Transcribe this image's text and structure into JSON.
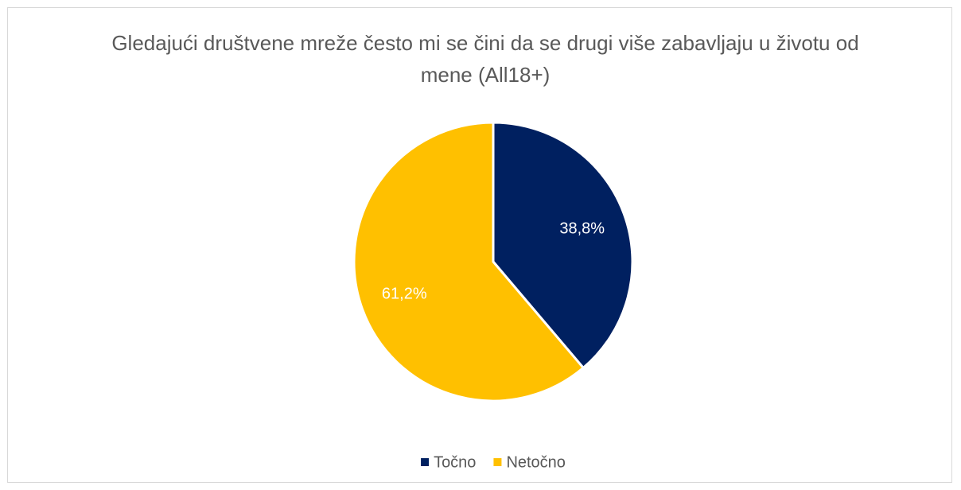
{
  "chart_data": {
    "type": "pie",
    "title": "Gledajući društvene mreže često mi se čini da se drugi više zabavljaju u životu od mene (All18+)",
    "categories": [
      "Točno",
      "Netočno"
    ],
    "values": [
      38.8,
      61.2
    ],
    "value_labels": [
      "38,8%",
      "61,2%"
    ],
    "colors": [
      "#002060",
      "#ffc000"
    ],
    "legend": "bottom"
  }
}
